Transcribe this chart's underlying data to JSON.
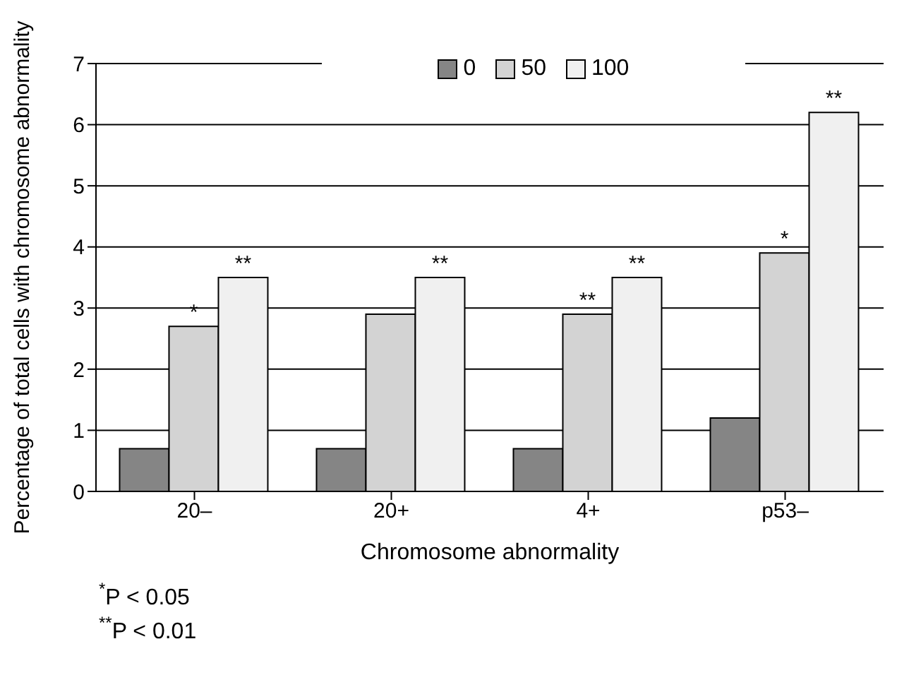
{
  "chart_data": {
    "type": "bar",
    "xlabel": "Chromosome abnormality",
    "ylabel": "Percentage of total cells with chromosome abnormality",
    "legend": "top",
    "grid": "y",
    "categories": [
      "20–",
      "20+",
      "4+",
      "p53–"
    ],
    "ylim": [
      0,
      7
    ],
    "yticks": [
      0,
      1,
      2,
      3,
      4,
      5,
      6,
      7
    ],
    "series": [
      {
        "name": "0",
        "color": "#858585",
        "values": [
          0.7,
          0.7,
          0.7,
          1.2
        ]
      },
      {
        "name": "50",
        "color": "#d3d3d3",
        "values": [
          2.7,
          2.9,
          2.9,
          3.9
        ],
        "value_labels": [
          "*",
          null,
          "**",
          "*"
        ]
      },
      {
        "name": "100",
        "color": "#f0f0f0",
        "values": [
          3.5,
          3.5,
          3.5,
          6.2
        ],
        "value_labels": [
          "**",
          "**",
          "**",
          "**"
        ]
      }
    ],
    "annotations": [
      "$^{*}$P < 0.05",
      "$^{**}$P < 0.01"
    ]
  }
}
